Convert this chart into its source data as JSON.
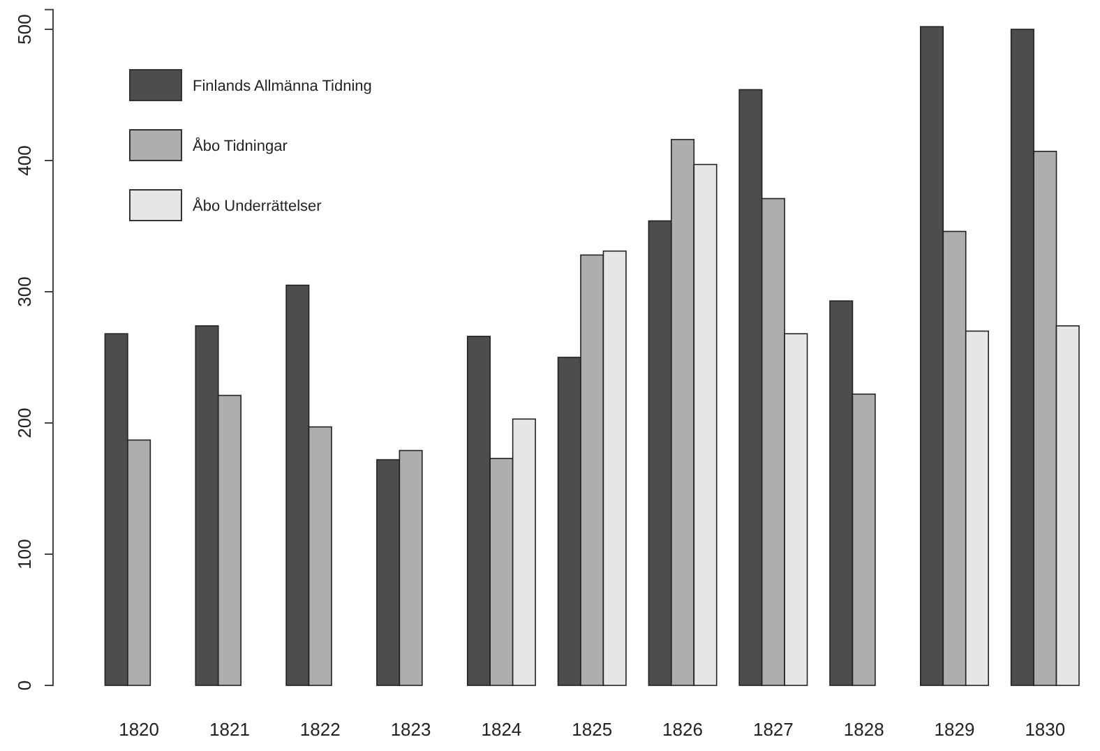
{
  "chart_data": {
    "type": "bar",
    "categories": [
      "1820",
      "1821",
      "1822",
      "1823",
      "1824",
      "1825",
      "1826",
      "1827",
      "1828",
      "1829",
      "1830"
    ],
    "series": [
      {
        "name": "Finlands Allmänna Tidning",
        "color": "#4d4d4d",
        "values": [
          268,
          274,
          305,
          172,
          266,
          250,
          354,
          454,
          293,
          502,
          500
        ]
      },
      {
        "name": "Åbo Tidningar",
        "color": "#aeaeae",
        "values": [
          187,
          221,
          197,
          179,
          173,
          328,
          416,
          371,
          222,
          346,
          407
        ]
      },
      {
        "name": "Åbo Underrättelser",
        "color": "#e6e6e6",
        "values": [
          0,
          0,
          0,
          0,
          203,
          331,
          397,
          268,
          0,
          270,
          274
        ]
      }
    ],
    "ylim": [
      0,
      515
    ],
    "yticks": [
      0,
      100,
      200,
      300,
      400,
      500
    ],
    "grid": false,
    "legend": "top left"
  }
}
